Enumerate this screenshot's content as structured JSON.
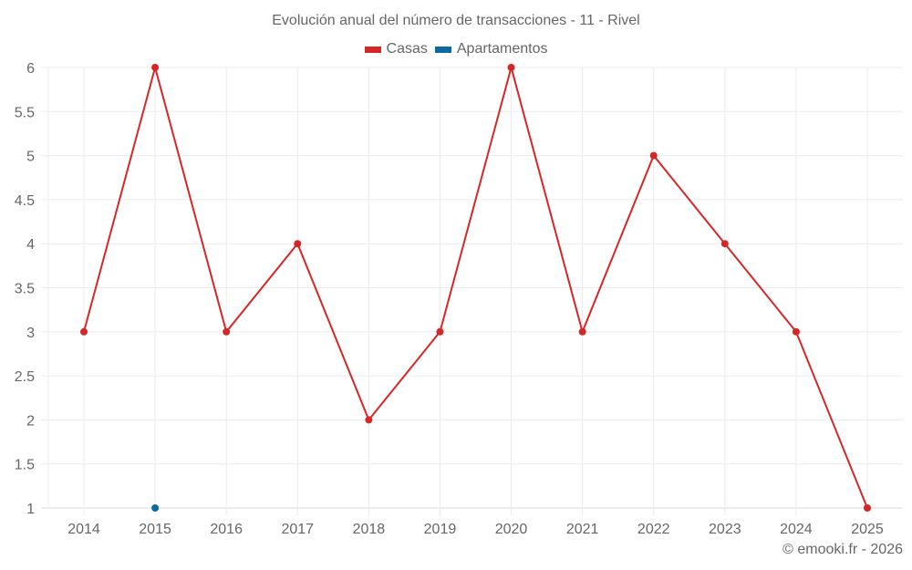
{
  "chart_data": {
    "type": "line",
    "title": "Evolución anual del número de transacciones - 11 - Rivel",
    "xlabel": "",
    "ylabel": "",
    "categories": [
      "2014",
      "2015",
      "2016",
      "2017",
      "2018",
      "2019",
      "2020",
      "2021",
      "2022",
      "2023",
      "2024",
      "2025"
    ],
    "ylim": [
      1,
      6
    ],
    "yticks": [
      "1",
      "1.5",
      "2",
      "2.5",
      "3",
      "3.5",
      "4",
      "4.5",
      "5",
      "5.5",
      "6"
    ],
    "grid": true,
    "legend_position": "top",
    "series": [
      {
        "name": "Casas",
        "color": "#d62728",
        "values": [
          3,
          6,
          3,
          4,
          2,
          3,
          6,
          3,
          5,
          4,
          3,
          1
        ]
      },
      {
        "name": "Apartamentos",
        "color": "#0b6aa2",
        "values": [
          null,
          1,
          null,
          null,
          null,
          null,
          null,
          null,
          null,
          null,
          null,
          null
        ]
      }
    ]
  },
  "legend": {
    "items": [
      {
        "label": "Casas",
        "color": "#d62728"
      },
      {
        "label": "Apartamentos",
        "color": "#0b6aa2"
      }
    ]
  },
  "watermark": "© emooki.fr - 2026"
}
